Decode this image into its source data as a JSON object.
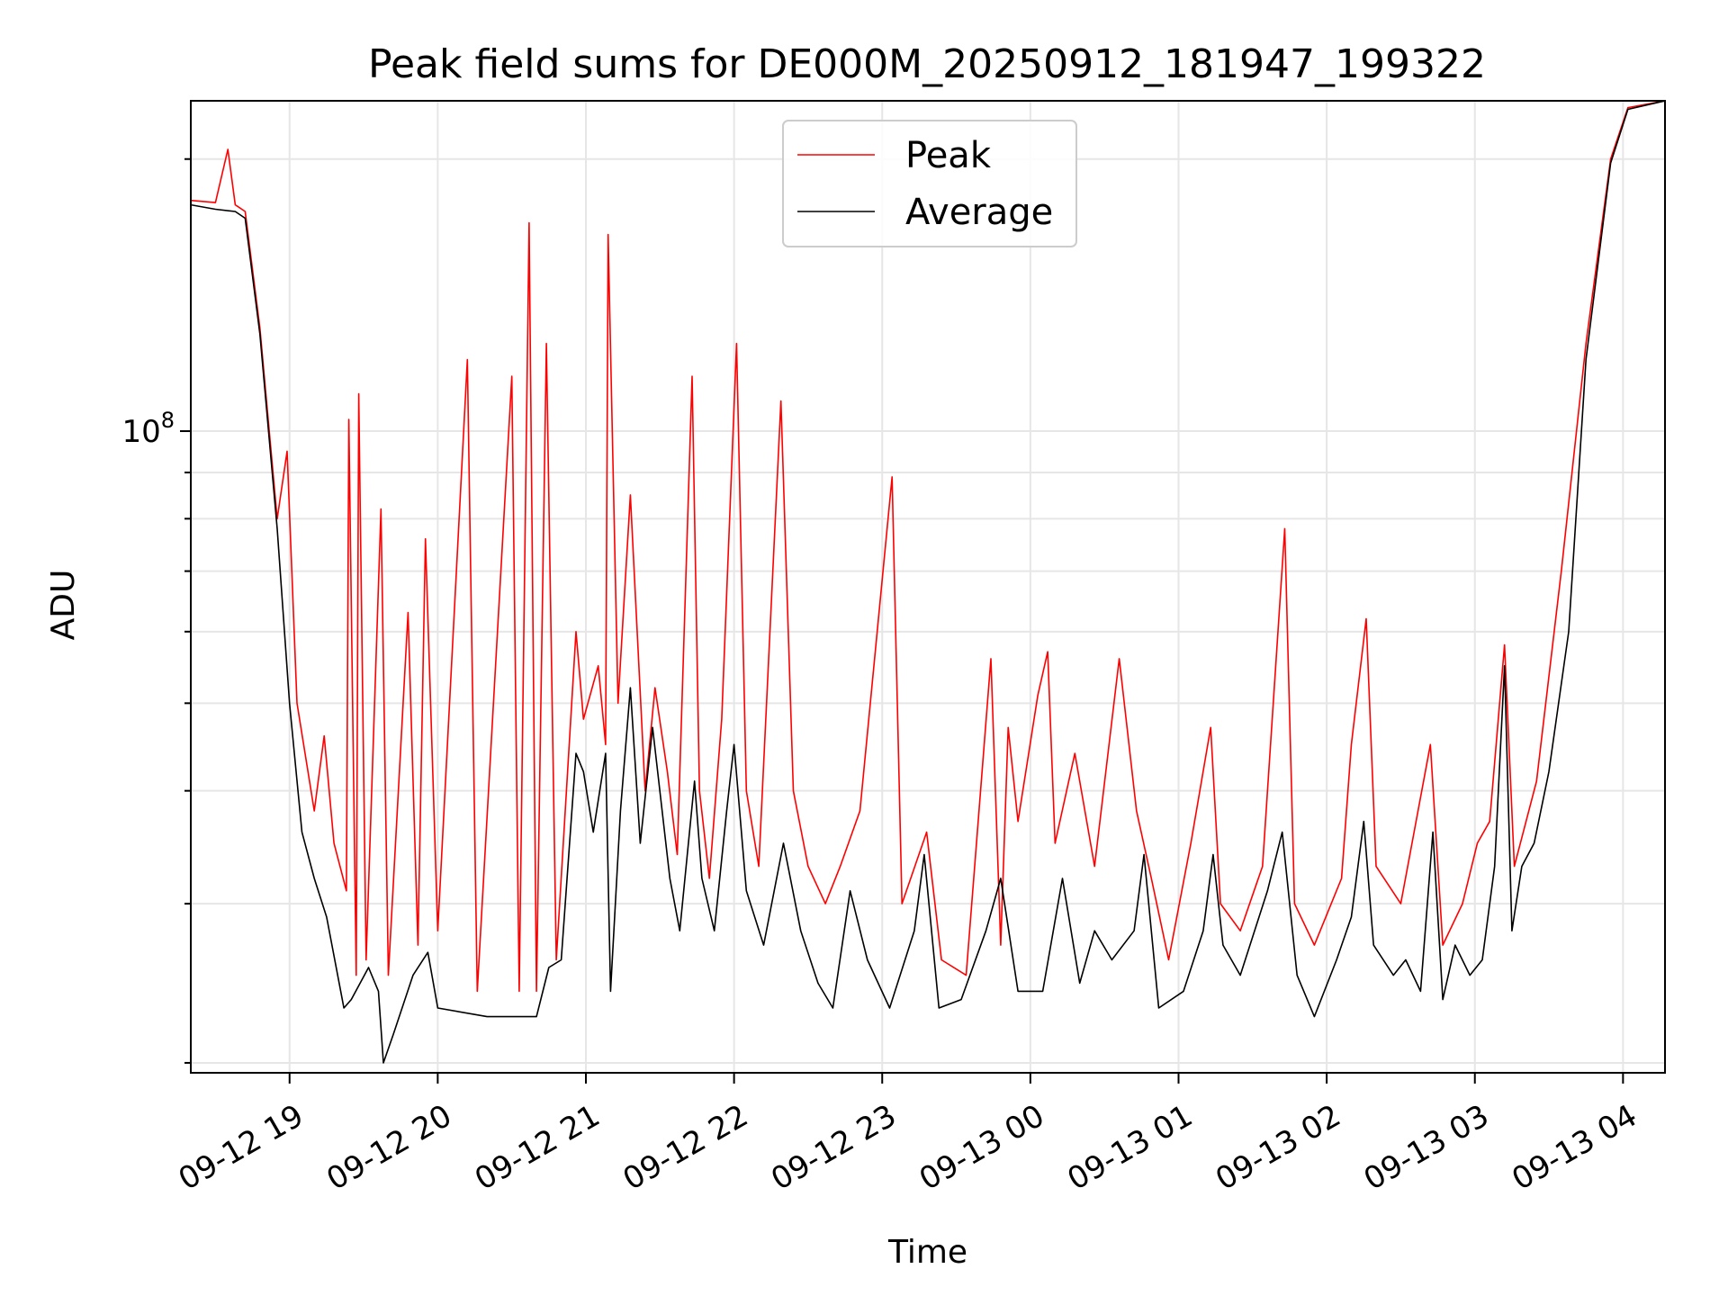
{
  "chart_data": {
    "type": "line",
    "title": "Peak field sums for DE000M_20250912_181947_199322",
    "xlabel": "Time",
    "ylabel": "ADU",
    "y_scale": "log",
    "ylim": [
      19500000,
      232000000
    ],
    "xlim": [
      "2025-09-12 18:20",
      "2025-09-13 04:17"
    ],
    "grid": true,
    "legend_position": "top-center",
    "x_ticks": [
      {
        "t": "2025-09-12 19:00",
        "label": "09-12 19"
      },
      {
        "t": "2025-09-12 20:00",
        "label": "09-12 20"
      },
      {
        "t": "2025-09-12 21:00",
        "label": "09-12 21"
      },
      {
        "t": "2025-09-12 22:00",
        "label": "09-12 22"
      },
      {
        "t": "2025-09-12 23:00",
        "label": "09-12 23"
      },
      {
        "t": "2025-09-13 00:00",
        "label": "09-13 00"
      },
      {
        "t": "2025-09-13 01:00",
        "label": "09-13 01"
      },
      {
        "t": "2025-09-13 02:00",
        "label": "09-13 02"
      },
      {
        "t": "2025-09-13 03:00",
        "label": "09-13 03"
      },
      {
        "t": "2025-09-13 04:00",
        "label": "09-13 04"
      }
    ],
    "y_ticks": [
      {
        "value": 100000000,
        "base": "10",
        "exp": "8"
      }
    ],
    "series": [
      {
        "name": "Peak",
        "color": "#ff0000",
        "points": [
          [
            "2025-09-12 18:20",
            180000000
          ],
          [
            "2025-09-12 18:30",
            179000000
          ],
          [
            "2025-09-12 18:35",
            205000000
          ],
          [
            "2025-09-12 18:38",
            178000000
          ],
          [
            "2025-09-12 18:42",
            175000000
          ],
          [
            "2025-09-12 18:48",
            130000000
          ],
          [
            "2025-09-12 18:55",
            80000000
          ],
          [
            "2025-09-12 18:59",
            95000000
          ],
          [
            "2025-09-12 19:03",
            50000000
          ],
          [
            "2025-09-12 19:10",
            38000000
          ],
          [
            "2025-09-12 19:14",
            46000000
          ],
          [
            "2025-09-12 19:18",
            35000000
          ],
          [
            "2025-09-12 19:23",
            31000000
          ],
          [
            "2025-09-12 19:24",
            103000000
          ],
          [
            "2025-09-12 19:27",
            25000000
          ],
          [
            "2025-09-12 19:28",
            110000000
          ],
          [
            "2025-09-12 19:31",
            26000000
          ],
          [
            "2025-09-12 19:37",
            82000000
          ],
          [
            "2025-09-12 19:40",
            25000000
          ],
          [
            "2025-09-12 19:48",
            63000000
          ],
          [
            "2025-09-12 19:52",
            27000000
          ],
          [
            "2025-09-12 19:55",
            76000000
          ],
          [
            "2025-09-12 20:00",
            28000000
          ],
          [
            "2025-09-12 20:12",
            120000000
          ],
          [
            "2025-09-12 20:16",
            24000000
          ],
          [
            "2025-09-12 20:30",
            115000000
          ],
          [
            "2025-09-12 20:33",
            24000000
          ],
          [
            "2025-09-12 20:37",
            170000000
          ],
          [
            "2025-09-12 20:40",
            24000000
          ],
          [
            "2025-09-12 20:44",
            125000000
          ],
          [
            "2025-09-12 20:48",
            26000000
          ],
          [
            "2025-09-12 20:56",
            60000000
          ],
          [
            "2025-09-12 20:59",
            48000000
          ],
          [
            "2025-09-12 21:05",
            55000000
          ],
          [
            "2025-09-12 21:08",
            45000000
          ],
          [
            "2025-09-12 21:09",
            165000000
          ],
          [
            "2025-09-12 21:13",
            50000000
          ],
          [
            "2025-09-12 21:18",
            85000000
          ],
          [
            "2025-09-12 21:24",
            40000000
          ],
          [
            "2025-09-12 21:28",
            52000000
          ],
          [
            "2025-09-12 21:33",
            42000000
          ],
          [
            "2025-09-12 21:37",
            34000000
          ],
          [
            "2025-09-12 21:43",
            115000000
          ],
          [
            "2025-09-12 21:46",
            40000000
          ],
          [
            "2025-09-12 21:50",
            32000000
          ],
          [
            "2025-09-12 21:55",
            48000000
          ],
          [
            "2025-09-12 22:01",
            125000000
          ],
          [
            "2025-09-12 22:05",
            40000000
          ],
          [
            "2025-09-12 22:10",
            33000000
          ],
          [
            "2025-09-12 22:19",
            108000000
          ],
          [
            "2025-09-12 22:24",
            40000000
          ],
          [
            "2025-09-12 22:30",
            33000000
          ],
          [
            "2025-09-12 22:37",
            30000000
          ],
          [
            "2025-09-12 22:43",
            33000000
          ],
          [
            "2025-09-12 22:51",
            38000000
          ],
          [
            "2025-09-12 23:04",
            89000000
          ],
          [
            "2025-09-12 23:08",
            30000000
          ],
          [
            "2025-09-12 23:18",
            36000000
          ],
          [
            "2025-09-12 23:24",
            26000000
          ],
          [
            "2025-09-12 23:34",
            25000000
          ],
          [
            "2025-09-12 23:44",
            56000000
          ],
          [
            "2025-09-12 23:48",
            27000000
          ],
          [
            "2025-09-12 23:51",
            47000000
          ],
          [
            "2025-09-12 23:55",
            37000000
          ],
          [
            "2025-09-13 00:03",
            51000000
          ],
          [
            "2025-09-13 00:07",
            57000000
          ],
          [
            "2025-09-13 00:10",
            35000000
          ],
          [
            "2025-09-13 00:18",
            44000000
          ],
          [
            "2025-09-13 00:26",
            33000000
          ],
          [
            "2025-09-13 00:36",
            56000000
          ],
          [
            "2025-09-13 00:43",
            38000000
          ],
          [
            "2025-09-13 00:49",
            32000000
          ],
          [
            "2025-09-13 00:56",
            26000000
          ],
          [
            "2025-09-13 01:05",
            35000000
          ],
          [
            "2025-09-13 01:13",
            47000000
          ],
          [
            "2025-09-13 01:17",
            30000000
          ],
          [
            "2025-09-13 01:25",
            28000000
          ],
          [
            "2025-09-13 01:34",
            33000000
          ],
          [
            "2025-09-13 01:43",
            78000000
          ],
          [
            "2025-09-13 01:47",
            30000000
          ],
          [
            "2025-09-13 01:55",
            27000000
          ],
          [
            "2025-09-13 02:06",
            32000000
          ],
          [
            "2025-09-13 02:10",
            45000000
          ],
          [
            "2025-09-13 02:16",
            62000000
          ],
          [
            "2025-09-13 02:20",
            33000000
          ],
          [
            "2025-09-13 02:30",
            30000000
          ],
          [
            "2025-09-13 02:42",
            45000000
          ],
          [
            "2025-09-13 02:47",
            27000000
          ],
          [
            "2025-09-13 02:55",
            30000000
          ],
          [
            "2025-09-13 03:01",
            35000000
          ],
          [
            "2025-09-13 03:06",
            37000000
          ],
          [
            "2025-09-13 03:12",
            58000000
          ],
          [
            "2025-09-13 03:16",
            33000000
          ],
          [
            "2025-09-13 03:25",
            41000000
          ],
          [
            "2025-09-13 03:35",
            70000000
          ],
          [
            "2025-09-13 03:45",
            125000000
          ],
          [
            "2025-09-13 03:55",
            200000000
          ],
          [
            "2025-09-13 04:02",
            228000000
          ],
          [
            "2025-09-13 04:17",
            232000000
          ]
        ]
      },
      {
        "name": "Average",
        "color": "#000000",
        "points": [
          [
            "2025-09-12 18:20",
            178000000
          ],
          [
            "2025-09-12 18:30",
            176000000
          ],
          [
            "2025-09-12 18:38",
            175000000
          ],
          [
            "2025-09-12 18:42",
            172000000
          ],
          [
            "2025-09-12 18:48",
            128000000
          ],
          [
            "2025-09-12 18:55",
            78000000
          ],
          [
            "2025-09-12 19:00",
            50000000
          ],
          [
            "2025-09-12 19:05",
            36000000
          ],
          [
            "2025-09-12 19:10",
            32000000
          ],
          [
            "2025-09-12 19:15",
            29000000
          ],
          [
            "2025-09-12 19:22",
            23000000
          ],
          [
            "2025-09-12 19:25",
            23500000
          ],
          [
            "2025-09-12 19:32",
            25500000
          ],
          [
            "2025-09-12 19:36",
            24000000
          ],
          [
            "2025-09-12 19:38",
            20000000
          ],
          [
            "2025-09-12 19:42",
            21500000
          ],
          [
            "2025-09-12 19:50",
            25000000
          ],
          [
            "2025-09-12 19:56",
            26500000
          ],
          [
            "2025-09-12 20:00",
            23000000
          ],
          [
            "2025-09-12 20:20",
            22500000
          ],
          [
            "2025-09-12 20:40",
            22500000
          ],
          [
            "2025-09-12 20:45",
            25500000
          ],
          [
            "2025-09-12 20:50",
            26000000
          ],
          [
            "2025-09-12 20:56",
            44000000
          ],
          [
            "2025-09-12 20:59",
            42000000
          ],
          [
            "2025-09-12 21:03",
            36000000
          ],
          [
            "2025-09-12 21:08",
            44000000
          ],
          [
            "2025-09-12 21:10",
            24000000
          ],
          [
            "2025-09-12 21:14",
            38000000
          ],
          [
            "2025-09-12 21:18",
            52000000
          ],
          [
            "2025-09-12 21:22",
            35000000
          ],
          [
            "2025-09-12 21:27",
            47000000
          ],
          [
            "2025-09-12 21:34",
            32000000
          ],
          [
            "2025-09-12 21:38",
            28000000
          ],
          [
            "2025-09-12 21:44",
            41000000
          ],
          [
            "2025-09-12 21:47",
            32000000
          ],
          [
            "2025-09-12 21:52",
            28000000
          ],
          [
            "2025-09-12 21:57",
            38000000
          ],
          [
            "2025-09-12 22:00",
            45000000
          ],
          [
            "2025-09-12 22:05",
            31000000
          ],
          [
            "2025-09-12 22:12",
            27000000
          ],
          [
            "2025-09-12 22:20",
            35000000
          ],
          [
            "2025-09-12 22:27",
            28000000
          ],
          [
            "2025-09-12 22:34",
            24500000
          ],
          [
            "2025-09-12 22:40",
            23000000
          ],
          [
            "2025-09-12 22:47",
            31000000
          ],
          [
            "2025-09-12 22:54",
            26000000
          ],
          [
            "2025-09-12 23:03",
            23000000
          ],
          [
            "2025-09-12 23:13",
            28000000
          ],
          [
            "2025-09-12 23:17",
            34000000
          ],
          [
            "2025-09-12 23:23",
            23000000
          ],
          [
            "2025-09-12 23:32",
            23500000
          ],
          [
            "2025-09-12 23:42",
            28000000
          ],
          [
            "2025-09-12 23:48",
            32000000
          ],
          [
            "2025-09-12 23:55",
            24000000
          ],
          [
            "2025-09-13 00:05",
            24000000
          ],
          [
            "2025-09-13 00:13",
            32000000
          ],
          [
            "2025-09-13 00:20",
            24500000
          ],
          [
            "2025-09-13 00:26",
            28000000
          ],
          [
            "2025-09-13 00:33",
            26000000
          ],
          [
            "2025-09-13 00:42",
            28000000
          ],
          [
            "2025-09-13 00:46",
            34000000
          ],
          [
            "2025-09-13 00:52",
            23000000
          ],
          [
            "2025-09-13 01:02",
            24000000
          ],
          [
            "2025-09-13 01:10",
            28000000
          ],
          [
            "2025-09-13 01:14",
            34000000
          ],
          [
            "2025-09-13 01:18",
            27000000
          ],
          [
            "2025-09-13 01:25",
            25000000
          ],
          [
            "2025-09-13 01:36",
            31000000
          ],
          [
            "2025-09-13 01:42",
            36000000
          ],
          [
            "2025-09-13 01:48",
            25000000
          ],
          [
            "2025-09-13 01:55",
            22500000
          ],
          [
            "2025-09-13 02:04",
            26000000
          ],
          [
            "2025-09-13 02:10",
            29000000
          ],
          [
            "2025-09-13 02:15",
            37000000
          ],
          [
            "2025-09-13 02:19",
            27000000
          ],
          [
            "2025-09-13 02:27",
            25000000
          ],
          [
            "2025-09-13 02:32",
            26000000
          ],
          [
            "2025-09-13 02:38",
            24000000
          ],
          [
            "2025-09-13 02:43",
            36000000
          ],
          [
            "2025-09-13 02:47",
            23500000
          ],
          [
            "2025-09-13 02:52",
            27000000
          ],
          [
            "2025-09-13 02:58",
            25000000
          ],
          [
            "2025-09-13 03:03",
            26000000
          ],
          [
            "2025-09-13 03:08",
            33000000
          ],
          [
            "2025-09-13 03:12",
            55000000
          ],
          [
            "2025-09-13 03:15",
            28000000
          ],
          [
            "2025-09-13 03:19",
            33000000
          ],
          [
            "2025-09-13 03:24",
            35000000
          ],
          [
            "2025-09-13 03:30",
            42000000
          ],
          [
            "2025-09-13 03:38",
            60000000
          ],
          [
            "2025-09-13 03:45",
            120000000
          ],
          [
            "2025-09-13 03:55",
            198000000
          ],
          [
            "2025-09-13 04:02",
            227000000
          ],
          [
            "2025-09-13 04:17",
            232000000
          ]
        ]
      }
    ]
  }
}
